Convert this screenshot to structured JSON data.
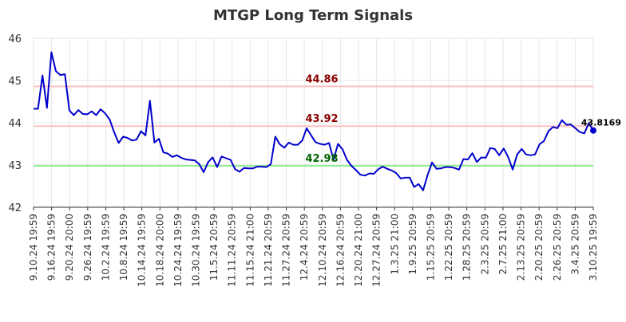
{
  "chart_data": {
    "type": "line",
    "title": "MTGP Long Term Signals",
    "xlabel": "",
    "ylabel": "",
    "ylim": [
      42,
      46
    ],
    "y_ticks": [
      "42",
      "43",
      "44",
      "45",
      "46"
    ],
    "grid": true,
    "x_tick_labels": [
      "9.10.24 19:59",
      "9.16.24 19:59",
      "9.20.24 20:00",
      "9.26.24 19:59",
      "10.2.24 19:59",
      "10.8.24 19:59",
      "10.14.24 19:59",
      "10.18.24 20:00",
      "10.24.24 19:59",
      "10.30.24 19:59",
      "11.5.24 20:59",
      "11.11.24 20:59",
      "11.15.24 21:00",
      "11.21.24 20:59",
      "11.27.24 20:59",
      "12.4.24 20:59",
      "12.10.24 20:59",
      "12.16.24 20:59",
      "12.20.24 21:00",
      "12.27.24 20:59",
      "1.3.25 21:00",
      "1.9.25 20:59",
      "1.15.25 20:59",
      "1.22.25 20:59",
      "1.28.25 20:59",
      "2.3.25 20:59",
      "2.7.25 21:00",
      "2.13.25 20:59",
      "2.20.25 20:59",
      "2.26.25 20:59",
      "3.4.25 20:59",
      "3.10.25 19:59"
    ],
    "series": [
      {
        "color": "#0000cc",
        "values": [
          44.33,
          44.33,
          45.12,
          44.35,
          45.67,
          45.22,
          45.13,
          45.15,
          44.29,
          44.18,
          44.3,
          44.21,
          44.2,
          44.27,
          44.18,
          44.32,
          44.22,
          44.08,
          43.78,
          43.52,
          43.67,
          43.64,
          43.58,
          43.6,
          43.8,
          43.7,
          44.52,
          43.53,
          43.62,
          43.3,
          43.27,
          43.19,
          43.23,
          43.17,
          43.13,
          43.12,
          43.11,
          43.02,
          42.83,
          43.07,
          43.18,
          42.95,
          43.2,
          43.16,
          43.12,
          42.9,
          42.84,
          42.93,
          42.92,
          42.92,
          42.96,
          42.96,
          42.95,
          43.02,
          43.67,
          43.49,
          43.41,
          43.53,
          43.48,
          43.48,
          43.58,
          43.87,
          43.7,
          43.54,
          43.5,
          43.48,
          43.52,
          43.12,
          43.5,
          43.37,
          43.12,
          42.98,
          42.88,
          42.77,
          42.75,
          42.8,
          42.79,
          42.9,
          42.96,
          42.91,
          42.87,
          42.81,
          42.68,
          42.7,
          42.7,
          42.48,
          42.55,
          42.4,
          42.76,
          43.06,
          42.91,
          42.92,
          42.95,
          42.95,
          42.93,
          42.89,
          43.14,
          43.13,
          43.28,
          43.07,
          43.18,
          43.17,
          43.4,
          43.38,
          43.23,
          43.39,
          43.19,
          42.89,
          43.25,
          43.38,
          43.25,
          43.23,
          43.25,
          43.49,
          43.57,
          43.8,
          43.9,
          43.87,
          44.06,
          43.95,
          43.96,
          43.87,
          43.78,
          43.75,
          43.99,
          43.8169
        ]
      }
    ],
    "levels": [
      {
        "value": 44.86,
        "label": "44.86",
        "line_color": "#ffc0c0",
        "text_color": "#8b0000"
      },
      {
        "value": 43.92,
        "label": "43.92",
        "line_color": "#ffc0c0",
        "text_color": "#8b0000"
      },
      {
        "value": 42.98,
        "label": "42.98",
        "line_color": "#90ee90",
        "text_color": "#006400"
      }
    ],
    "last_value_label": "43.8169"
  }
}
